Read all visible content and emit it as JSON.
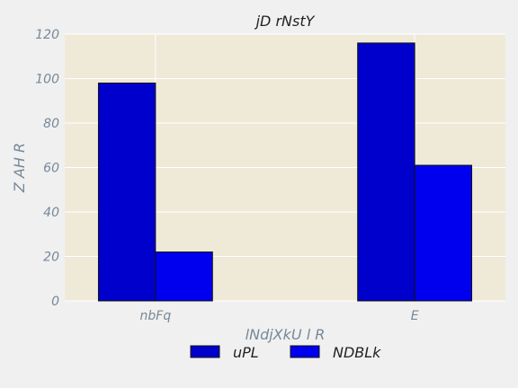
{
  "chart_data": {
    "type": "bar",
    "title": "jD rNstY",
    "xlabel": "lNdjXkU l R",
    "ylabel": "Z AH R",
    "categories": [
      "nbFq",
      "E"
    ],
    "series": [
      {
        "name": "uPL",
        "values": [
          98,
          116
        ],
        "color": "#0000cc"
      },
      {
        "name": "NDBLk",
        "values": [
          22,
          61
        ],
        "color": "#0000ee"
      }
    ],
    "ylim": [
      0,
      120
    ],
    "yticks": [
      0,
      20,
      40,
      60,
      80,
      100,
      120
    ],
    "grid": true,
    "legend_position": "bottom-center"
  },
  "colors": {
    "plot_background": "#efe9d8",
    "figure_background": "#f0f0f0",
    "grid": "#ffffff",
    "bar_edge": "#111111"
  }
}
